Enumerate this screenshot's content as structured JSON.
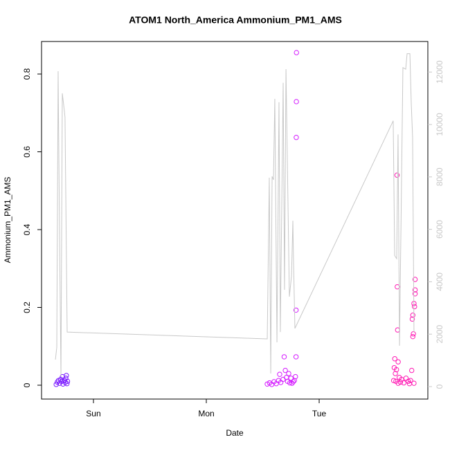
{
  "chart_data": {
    "type": "scatter",
    "title": "ATOM1 North_America Ammonium_PM1_AMS",
    "xlabel": "Date",
    "ylabel": "Ammonium_PM1_AMS",
    "xlim": [
      -0.46,
      2.963
    ],
    "xticks": [
      {
        "value": 0,
        "label": "Sun"
      },
      {
        "value": 1,
        "label": "Mon"
      },
      {
        "value": 2,
        "label": "Tue"
      }
    ],
    "ylim": [
      -0.0356,
      0.8836
    ],
    "yticks": [
      0,
      0.2,
      0.4,
      0.6,
      0.8
    ],
    "y2lim": [
      -475,
      13166
    ],
    "y2ticks": [
      0,
      2000,
      4000,
      6000,
      8000,
      10000,
      12000
    ],
    "y2color": "#c8c8c8",
    "series": [
      {
        "type": "scatter",
        "color": "#7a1aff",
        "x": [
          -0.33,
          -0.32,
          -0.31,
          -0.3,
          -0.29,
          -0.28,
          -0.275,
          -0.27,
          -0.26,
          -0.25,
          -0.245,
          -0.24,
          -0.235,
          -0.23
        ],
        "values": [
          0.002,
          0.008,
          0.012,
          0.005,
          0.015,
          0.01,
          0.022,
          0.003,
          0.012,
          0.007,
          0.018,
          0.025,
          0.004,
          0.01
        ]
      },
      {
        "type": "scatter",
        "color": "#d41aff",
        "x": [
          1.54,
          1.56,
          1.58,
          1.6,
          1.62,
          1.64,
          1.65,
          1.66,
          1.68,
          1.69,
          1.7,
          1.71,
          1.72,
          1.74,
          1.75,
          1.76,
          1.78,
          1.79,
          1.795,
          1.795,
          1.797,
          1.798,
          1.799,
          1.77,
          1.73
        ],
        "values": [
          0.003,
          0.006,
          0.002,
          0.009,
          0.004,
          0.012,
          0.028,
          0.007,
          0.015,
          0.073,
          0.038,
          0.02,
          0.01,
          0.006,
          0.018,
          0.005,
          0.012,
          0.022,
          0.073,
          0.193,
          0.637,
          0.729,
          0.855,
          0.009,
          0.03
        ]
      },
      {
        "type": "scatter",
        "color": "#ff1ab4",
        "x": [
          2.66,
          2.665,
          2.67,
          2.675,
          2.68,
          2.685,
          2.69,
          2.692,
          2.695,
          2.7,
          2.7,
          2.71,
          2.72,
          2.73,
          2.75,
          2.77,
          2.79,
          2.81,
          2.82,
          2.825,
          2.83,
          2.83,
          2.835,
          2.84,
          2.845,
          2.85,
          2.85,
          2.85,
          2.84,
          2.8
        ],
        "values": [
          0.012,
          0.045,
          0.068,
          0.03,
          0.01,
          0.04,
          0.54,
          0.253,
          0.142,
          0.06,
          0.005,
          0.02,
          0.008,
          0.015,
          0.006,
          0.018,
          0.01,
          0.012,
          0.038,
          0.17,
          0.18,
          0.125,
          0.132,
          0.21,
          0.202,
          0.235,
          0.245,
          0.272,
          0.005,
          0.004
        ]
      },
      {
        "type": "line",
        "axis": "y2",
        "color": "#c8c8c8",
        "x": [
          -0.337,
          -0.325,
          -0.313,
          -0.301,
          -0.288,
          -0.276,
          -0.258,
          -0.252,
          -0.233,
          1.54,
          1.558,
          1.571,
          1.583,
          1.595,
          1.607,
          1.626,
          1.644,
          1.656,
          1.681,
          1.693,
          1.706,
          1.736,
          1.755,
          1.767,
          1.773,
          1.785,
          2.656,
          2.669,
          2.687,
          2.699,
          2.712,
          2.73,
          2.742,
          2.767,
          2.779,
          2.804,
          2.816,
          2.828,
          2.84
        ],
        "values": [
          1030,
          1500,
          12030,
          6040,
          370,
          11190,
          10530,
          10270,
          2080,
          1820,
          7970,
          500,
          8020,
          7890,
          10980,
          1690,
          10850,
          2080,
          11590,
          3690,
          12110,
          3430,
          4220,
          6330,
          4750,
          2220,
          10140,
          5000,
          4880,
          9620,
          1560,
          7890,
          12170,
          12110,
          12700,
          12700,
          10800,
          9500,
          2080
        ]
      }
    ]
  }
}
